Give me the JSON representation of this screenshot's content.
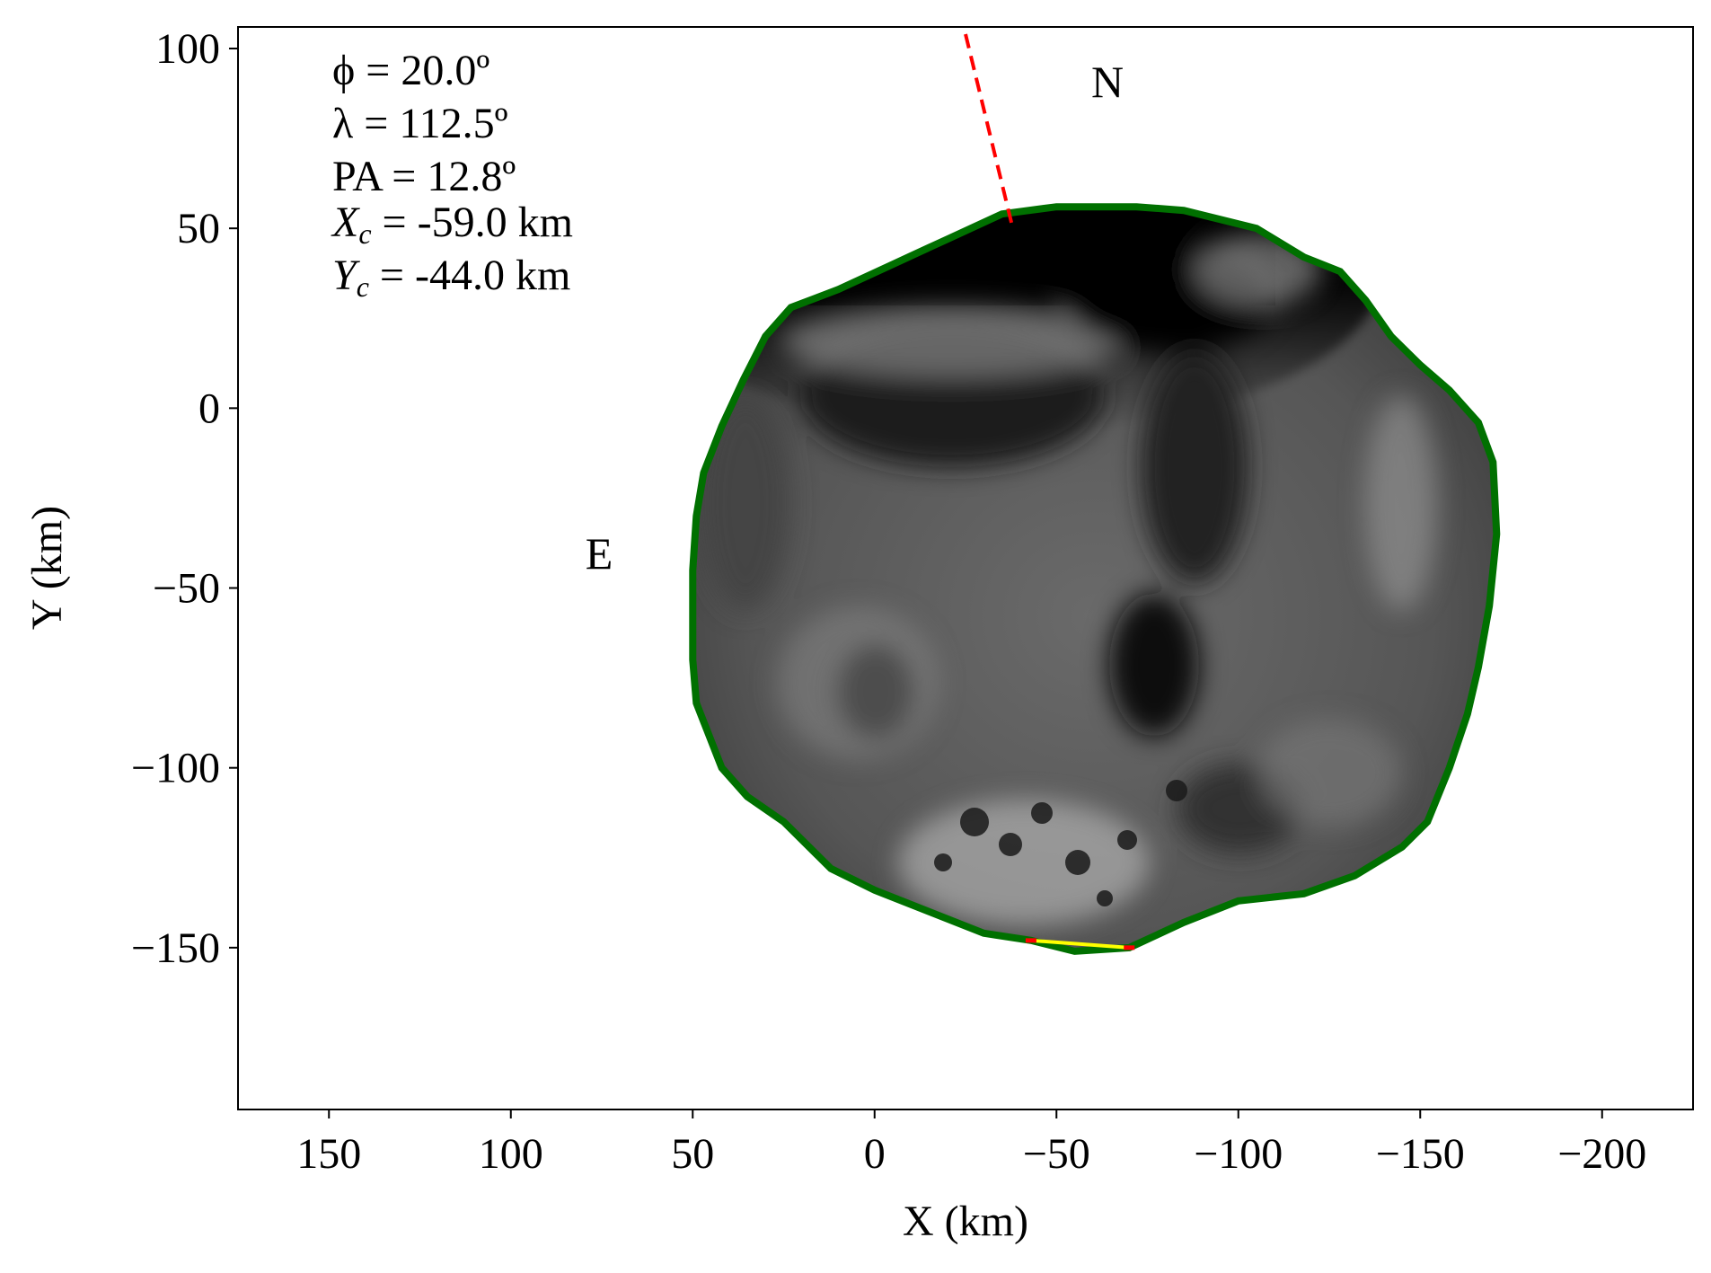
{
  "chart_data": {
    "type": "scatter",
    "title": "",
    "xlabel": "X (km)",
    "ylabel": "Y (km)",
    "xlim": [
      175,
      -225
    ],
    "ylim": [
      -195,
      106
    ],
    "x_inverted": true,
    "xticks": [
      150,
      100,
      50,
      0,
      -50,
      -100,
      -150,
      -200
    ],
    "xtick_labels": [
      "150",
      "100",
      "50",
      "0",
      "−50",
      "−100",
      "−150",
      "−200"
    ],
    "yticks": [
      100,
      50,
      0,
      -50,
      -100,
      -150
    ],
    "ytick_labels": [
      "100",
      "50",
      "0",
      "−50",
      "−100",
      "−150"
    ],
    "grid": false,
    "annotations": {
      "phi": "ϕ = 20.0º",
      "lambda": "λ = 112.5º",
      "pa": "PA = 12.8º",
      "xc_symbol": "X",
      "xc_sub": "c",
      "xc_value": " = -59.0 km",
      "yc_symbol": "Y",
      "yc_sub": "c",
      "yc_value": " = -44.0 km"
    },
    "compass": {
      "north": "N",
      "east": "E"
    },
    "north_direction_line": {
      "color": "#ff0000",
      "style": "dashed",
      "points": [
        [
          -25,
          104
        ],
        [
          -38,
          50
        ]
      ]
    },
    "outline_color": "#007000",
    "shape_outline": [
      [
        -72,
        56
      ],
      [
        -85,
        55
      ],
      [
        -105,
        50
      ],
      [
        -118,
        42
      ],
      [
        -128,
        38
      ],
      [
        -135,
        30
      ],
      [
        -142,
        20
      ],
      [
        -150,
        12
      ],
      [
        -158,
        5
      ],
      [
        -166,
        -4
      ],
      [
        -170,
        -15
      ],
      [
        -171,
        -35
      ],
      [
        -169,
        -55
      ],
      [
        -166,
        -72
      ],
      [
        -163,
        -85
      ],
      [
        -158,
        -100
      ],
      [
        -152,
        -115
      ],
      [
        -145,
        -122
      ],
      [
        -132,
        -130
      ],
      [
        -118,
        -135
      ],
      [
        -100,
        -137
      ],
      [
        -85,
        -143
      ],
      [
        -70,
        -150
      ],
      [
        -55,
        -151
      ],
      [
        -43,
        -148
      ],
      [
        -30,
        -146
      ],
      [
        -15,
        -140
      ],
      [
        0,
        -134
      ],
      [
        12,
        -128
      ],
      [
        25,
        -115
      ],
      [
        35,
        -108
      ],
      [
        42,
        -100
      ],
      [
        49,
        -82
      ],
      [
        50,
        -70
      ],
      [
        50,
        -45
      ],
      [
        49,
        -30
      ],
      [
        47,
        -18
      ],
      [
        42,
        -5
      ],
      [
        36,
        8
      ],
      [
        30,
        20
      ],
      [
        23,
        28
      ],
      [
        10,
        33
      ],
      [
        -5,
        40
      ],
      [
        -20,
        47
      ],
      [
        -35,
        54
      ],
      [
        -50,
        56
      ],
      [
        -62,
        56
      ]
    ],
    "chord": {
      "color": "#ffff00",
      "endpoint_color": "#ff0000",
      "points": [
        [
          -43,
          -148
        ],
        [
          -70,
          -150
        ]
      ]
    }
  }
}
